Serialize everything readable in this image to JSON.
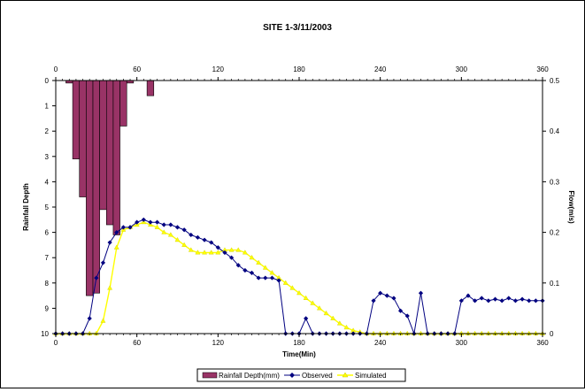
{
  "chart_data": {
    "type": "bar+line",
    "title": "SITE 1-3/11/2003",
    "xlabel": "Time(Min)",
    "ylabel_left": "Rainfall Depth",
    "ylabel_right": "Flow(m/s)",
    "xlim": [
      0,
      360
    ],
    "x_ticks": [
      "0",
      "60",
      "120",
      "180",
      "240",
      "300",
      "360"
    ],
    "x_tick_values": [
      0,
      60,
      120,
      180,
      240,
      300,
      360
    ],
    "rain_axis": {
      "ylim": [
        0,
        10
      ],
      "inverted": true,
      "ticks": [
        "0",
        "1",
        "2",
        "3",
        "4",
        "5",
        "6",
        "7",
        "8",
        "9",
        "10"
      ]
    },
    "flow_axis": {
      "ylim": [
        0,
        0.5
      ],
      "ticks": [
        "0",
        "0.1",
        "0.2",
        "0.3",
        "0.4",
        "0.5"
      ],
      "tick_values": [
        0,
        0.1,
        0.2,
        0.3,
        0.4,
        0.5
      ]
    },
    "grid": false,
    "legend_position": "bottom-center",
    "colors": {
      "rain": "#993366",
      "observed": "#000080",
      "simulated": "#ffff00"
    },
    "rainfall": {
      "name": "Rainfall Depth(mm)",
      "bar_width_min": 5,
      "x": [
        10,
        15,
        20,
        25,
        30,
        35,
        40,
        45,
        50,
        55,
        70
      ],
      "values": [
        0.1,
        3.1,
        4.6,
        8.5,
        8.4,
        5.1,
        5.7,
        6.1,
        1.8,
        0.1,
        0.6
      ]
    },
    "observed": {
      "name": "Observed",
      "x": [
        0,
        5,
        10,
        15,
        20,
        25,
        30,
        35,
        40,
        45,
        50,
        55,
        60,
        65,
        70,
        75,
        80,
        85,
        90,
        95,
        100,
        105,
        110,
        115,
        120,
        125,
        130,
        135,
        140,
        145,
        150,
        155,
        160,
        165,
        170,
        175,
        180,
        185,
        190,
        195,
        200,
        205,
        210,
        215,
        220,
        225,
        230,
        235,
        240,
        245,
        250,
        255,
        260,
        265,
        270,
        275,
        280,
        285,
        290,
        295,
        300,
        305,
        310,
        315,
        320,
        325,
        330,
        335,
        340,
        345,
        350,
        355,
        360
      ],
      "values": [
        0,
        0,
        0,
        0,
        0,
        0.03,
        0.11,
        0.14,
        0.18,
        0.2,
        0.21,
        0.21,
        0.22,
        0.225,
        0.22,
        0.22,
        0.215,
        0.215,
        0.21,
        0.205,
        0.195,
        0.19,
        0.185,
        0.18,
        0.17,
        0.16,
        0.15,
        0.135,
        0.125,
        0.12,
        0.11,
        0.11,
        0.11,
        0.105,
        0,
        0,
        0,
        0.03,
        0,
        0,
        0,
        0,
        0,
        0,
        0,
        0,
        0,
        0.065,
        0.08,
        0.075,
        0.07,
        0.045,
        0.035,
        0,
        0.08,
        0,
        0,
        0,
        0,
        0,
        0.065,
        0.075,
        0.065,
        0.07,
        0.065,
        0.068,
        0.065,
        0.07,
        0.065,
        0.068,
        0.065,
        0.065,
        0.065
      ]
    },
    "simulated": {
      "name": "Simulated",
      "x": [
        0,
        5,
        10,
        15,
        20,
        25,
        30,
        35,
        40,
        45,
        50,
        55,
        60,
        65,
        70,
        75,
        80,
        85,
        90,
        95,
        100,
        105,
        110,
        115,
        120,
        125,
        130,
        135,
        140,
        145,
        150,
        155,
        160,
        165,
        170,
        175,
        180,
        185,
        190,
        195,
        200,
        205,
        210,
        215,
        220,
        225,
        230,
        235,
        240,
        245,
        250,
        255,
        260,
        265,
        270,
        275,
        280,
        285,
        290,
        295,
        300,
        305,
        310,
        315,
        320,
        325,
        330,
        335,
        340,
        345,
        350,
        355,
        360
      ],
      "values": [
        0,
        0,
        0,
        0,
        0,
        0,
        0,
        0.025,
        0.09,
        0.17,
        0.205,
        0.21,
        0.215,
        0.22,
        0.215,
        0.21,
        0.2,
        0.195,
        0.185,
        0.175,
        0.165,
        0.16,
        0.16,
        0.16,
        0.16,
        0.165,
        0.165,
        0.165,
        0.16,
        0.15,
        0.14,
        0.13,
        0.12,
        0.11,
        0.1,
        0.09,
        0.08,
        0.07,
        0.06,
        0.05,
        0.04,
        0.03,
        0.02,
        0.012,
        0.006,
        0.003,
        0,
        0,
        0,
        0,
        0,
        0,
        0,
        0,
        0,
        0,
        0,
        0,
        0,
        0,
        0,
        0,
        0,
        0,
        0,
        0,
        0,
        0,
        0,
        0,
        0,
        0,
        0
      ]
    }
  }
}
